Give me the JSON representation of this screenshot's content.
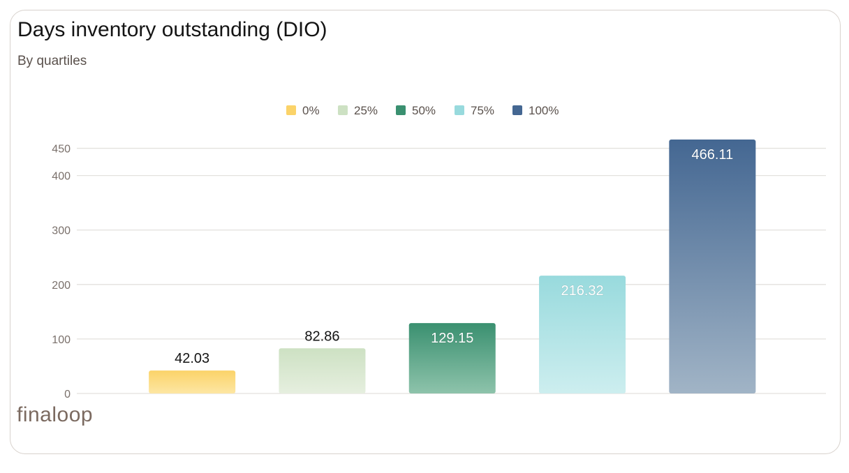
{
  "header": {
    "title": "Days inventory outstanding (DIO)",
    "subtitle": "By quartiles"
  },
  "brand": {
    "logo_text": "finaloop"
  },
  "chart_data": {
    "type": "bar",
    "title": "Days inventory outstanding (DIO)",
    "subtitle": "By quartiles",
    "xlabel": "",
    "ylabel": "",
    "categories": [
      "0%",
      "25%",
      "50%",
      "75%",
      "100%"
    ],
    "values": [
      42.03,
      82.86,
      129.15,
      216.32,
      466.11
    ],
    "data_labels": [
      "42.03",
      "82.86",
      "129.15",
      "216.32",
      "466.11"
    ],
    "label_inside": [
      false,
      false,
      true,
      true,
      true
    ],
    "ylim": [
      0,
      466.11
    ],
    "y_ticks": [
      0,
      100,
      200,
      300,
      400,
      450
    ],
    "y_tick_labels": [
      "0",
      "100",
      "200",
      "300",
      "400",
      "450"
    ],
    "grid": true,
    "legend_position": "top-center",
    "legend": [
      {
        "label": "0%",
        "color": "#fbd369"
      },
      {
        "label": "25%",
        "color": "#cde1c3"
      },
      {
        "label": "50%",
        "color": "#3a9070"
      },
      {
        "label": "75%",
        "color": "#98dadd"
      },
      {
        "label": "100%",
        "color": "#446792"
      }
    ],
    "bar_gradients": [
      {
        "top": "#fbd369",
        "bottom": "#fde6a3"
      },
      {
        "top": "#cde1c3",
        "bottom": "#e6efdf"
      },
      {
        "top": "#3a9070",
        "bottom": "#8ec3ab"
      },
      {
        "top": "#98dadd",
        "bottom": "#cdeeef"
      },
      {
        "top": "#446792",
        "bottom": "#a1b4c6"
      }
    ]
  }
}
